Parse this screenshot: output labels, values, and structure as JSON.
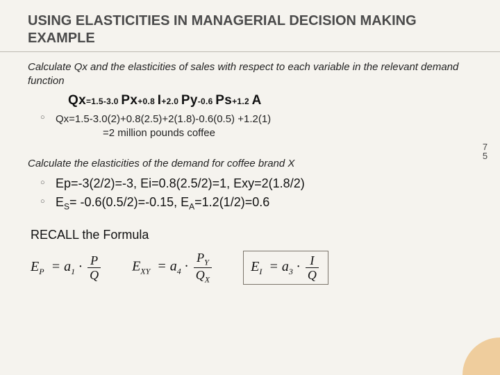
{
  "title": "USING ELASTICITIES IN MANAGERIAL DECISION MAKING EXAMPLE",
  "intro": "Calculate Qx and the elasticities of sales with respect to each variable in the relevant demand function",
  "mainEq": {
    "lhs": "Qx",
    "rhs_parts": [
      "=1.5-3.0 ",
      "Px",
      "+0.8 ",
      "I",
      "+2.0 ",
      "Py",
      "-0.6 ",
      "Ps",
      "+1.2 ",
      "A"
    ]
  },
  "calc": {
    "line1": "Qx=1.5-3.0(2)+0.8(2.5)+2(1.8)-0.6(0.5) +1.2(1)",
    "line2": "=2 million pounds coffee"
  },
  "section2": "Calculate the elasticities of the demand for coffee brand X",
  "elastics": {
    "row1": "Ep=-3(2/2)=-3, Ei=0.8(2.5/2)=1, Exy=2(1.8/2)",
    "row2_pre": "E",
    "row2_sub1": "S",
    "row2_mid": "= -0.6(0.5/2)=-0.15, E",
    "row2_sub2": "A",
    "row2_post": "=1.2(1/2)=0.6"
  },
  "recall": "RECALL the Formula",
  "formulas": {
    "f1": {
      "lhs": "E",
      "lhs_sub": "P",
      "coef": "a",
      "coef_sub": "1",
      "num": "P",
      "den": "Q"
    },
    "f2": {
      "lhs": "E",
      "lhs_sub": "XY",
      "coef": "a",
      "coef_sub": "4",
      "num": "P",
      "num_sub": "Y",
      "den": "Q",
      "den_sub": "X"
    },
    "f3": {
      "lhs": "E",
      "lhs_sub": "I",
      "coef": "a",
      "coef_sub": "3",
      "num": "I",
      "den": "Q"
    }
  },
  "pageNumber": "75",
  "colors": {
    "background": "#f5f3ee",
    "titleText": "#4a4a4a",
    "bodyText": "#222",
    "accent": "#e8a03a",
    "hr": "#bdb9b0"
  }
}
